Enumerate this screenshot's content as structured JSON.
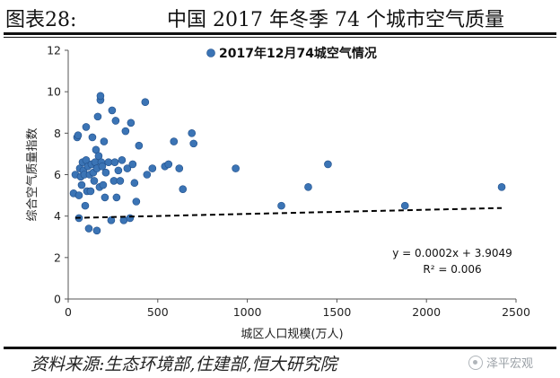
{
  "figure": {
    "label": "图表28:",
    "title": "中国 2017 年冬季 74 个城市空气质量",
    "source": "资料来源:生态环境部,住建部,恒大研究院",
    "watermark": "泽平宏观"
  },
  "colors": {
    "point": "#3b74b5",
    "point_edge": "#1f4e8a",
    "trend": "#000000",
    "axis": "#555555",
    "text": "#222222"
  },
  "chart_data": {
    "type": "scatter",
    "title": "",
    "xlabel": "城区人口规模(万人)",
    "ylabel": "综合空气质量指数",
    "xlim": [
      0,
      2500
    ],
    "ylim": [
      0,
      12
    ],
    "xticks": [
      0,
      500,
      1000,
      1500,
      2000,
      2500
    ],
    "yticks": [
      0,
      2,
      4,
      6,
      8,
      10,
      12
    ],
    "grid": false,
    "legend": {
      "position": "top-center",
      "label": "2017年12月74城空气情况"
    },
    "trendline": {
      "style": "dashed",
      "slope": 0.0002,
      "intercept": 3.9049,
      "from_x": 40,
      "to_x": 2420,
      "equation": "y = 0.0002x + 3.9049",
      "r2": "R² = 0.006"
    },
    "series": [
      {
        "name": "2017年12月74城空气情况",
        "points": [
          [
            30,
            5.1
          ],
          [
            40,
            6.0
          ],
          [
            50,
            7.8
          ],
          [
            55,
            7.9
          ],
          [
            60,
            5.0
          ],
          [
            60,
            3.9
          ],
          [
            65,
            6.3
          ],
          [
            70,
            5.9
          ],
          [
            75,
            5.5
          ],
          [
            80,
            6.6
          ],
          [
            85,
            6.2
          ],
          [
            90,
            6.0
          ],
          [
            95,
            4.5
          ],
          [
            100,
            6.7
          ],
          [
            100,
            8.3
          ],
          [
            105,
            5.2
          ],
          [
            110,
            6.4
          ],
          [
            115,
            3.4
          ],
          [
            120,
            6.0
          ],
          [
            125,
            5.2
          ],
          [
            130,
            6.5
          ],
          [
            135,
            7.8
          ],
          [
            140,
            6.1
          ],
          [
            145,
            5.7
          ],
          [
            150,
            6.6
          ],
          [
            155,
            7.2
          ],
          [
            160,
            6.3
          ],
          [
            160,
            3.3
          ],
          [
            165,
            8.8
          ],
          [
            170,
            6.9
          ],
          [
            175,
            5.4
          ],
          [
            180,
            9.6
          ],
          [
            180,
            9.8
          ],
          [
            185,
            6.6
          ],
          [
            190,
            6.4
          ],
          [
            195,
            5.5
          ],
          [
            200,
            7.6
          ],
          [
            205,
            4.9
          ],
          [
            210,
            6.1
          ],
          [
            225,
            6.6
          ],
          [
            240,
            3.8
          ],
          [
            245,
            9.1
          ],
          [
            255,
            5.7
          ],
          [
            260,
            6.6
          ],
          [
            265,
            8.6
          ],
          [
            270,
            4.9
          ],
          [
            280,
            6.2
          ],
          [
            290,
            5.7
          ],
          [
            300,
            6.7
          ],
          [
            310,
            3.8
          ],
          [
            320,
            8.1
          ],
          [
            330,
            6.3
          ],
          [
            345,
            3.9
          ],
          [
            350,
            8.5
          ],
          [
            360,
            6.5
          ],
          [
            370,
            5.6
          ],
          [
            380,
            4.7
          ],
          [
            395,
            7.4
          ],
          [
            430,
            9.5
          ],
          [
            440,
            6.0
          ],
          [
            470,
            6.3
          ],
          [
            540,
            6.4
          ],
          [
            560,
            6.5
          ],
          [
            590,
            7.6
          ],
          [
            620,
            6.3
          ],
          [
            640,
            5.3
          ],
          [
            690,
            8.0
          ],
          [
            700,
            7.5
          ],
          [
            935,
            6.3
          ],
          [
            1190,
            4.5
          ],
          [
            1340,
            5.4
          ],
          [
            1450,
            6.5
          ],
          [
            1880,
            4.5
          ],
          [
            2420,
            5.4
          ]
        ]
      }
    ]
  }
}
